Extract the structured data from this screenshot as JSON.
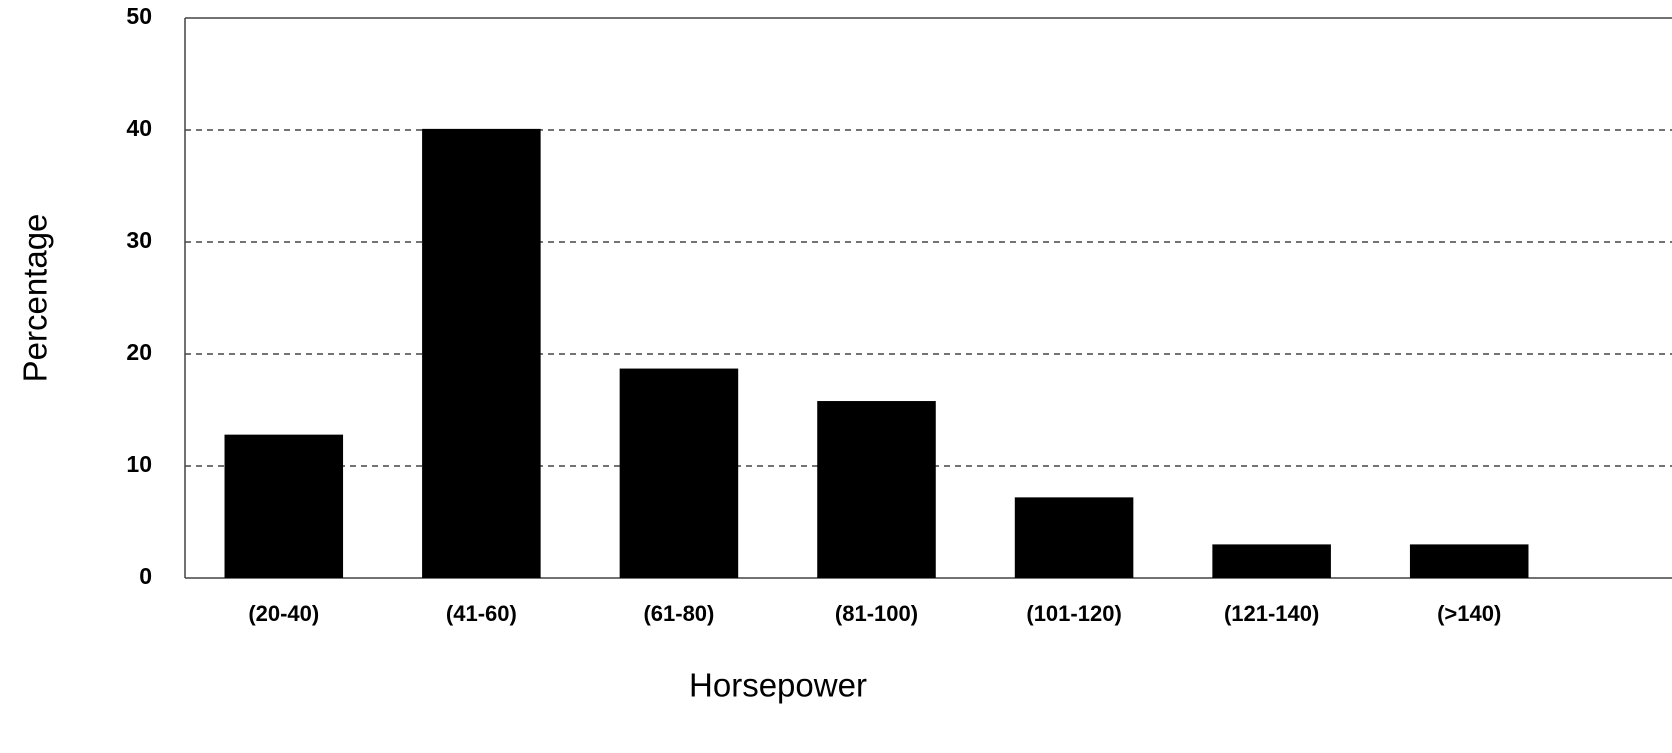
{
  "chart_data": {
    "type": "bar",
    "x_label": "Horsepower",
    "y_label": "Percentage",
    "categories": [
      "(20-40)",
      "(41-60)",
      "(61-80)",
      "(81-100)",
      "(101-120)",
      "(121-140)",
      "(>140)"
    ],
    "values": [
      12.8,
      40.1,
      18.7,
      15.8,
      7.2,
      3.0,
      3.0
    ],
    "color": "#000000",
    "ylim": [
      0,
      50
    ],
    "yticks": [
      0,
      10,
      20,
      30,
      40,
      50
    ],
    "grid": true
  }
}
